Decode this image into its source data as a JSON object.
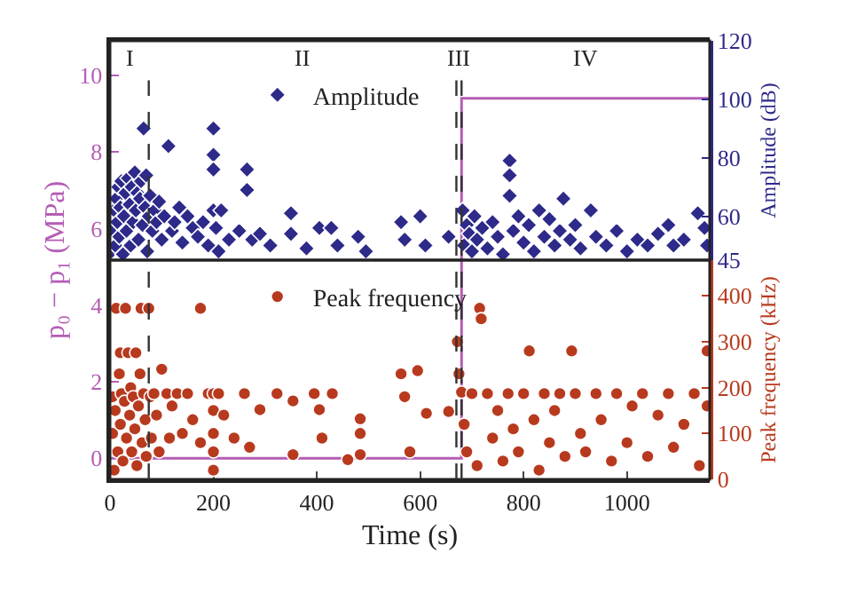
{
  "chart_data": {
    "type": "scatter",
    "xlabel": "Time (s)",
    "ylabel": "p₀ − p₁ (MPa)",
    "y2label": "Amplitude (dB)",
    "y3label": "Peak frequency (kHz)",
    "xlim": [
      0,
      1160
    ],
    "xticks": [
      0,
      200,
      400,
      600,
      800,
      1000
    ],
    "ylim": [
      -0.55,
      10.9
    ],
    "yticks": [
      0,
      2,
      4,
      6,
      8,
      10
    ],
    "y2lim": [
      45,
      120
    ],
    "y2ticks": [
      45,
      60,
      80,
      100,
      120
    ],
    "y3lim": [
      0,
      478
    ],
    "y3ticks": [
      0,
      100,
      200,
      300,
      400
    ],
    "grid": false,
    "legend": "top",
    "series": [
      {
        "type": "line",
        "color": "#b55db5",
        "marker": "none",
        "line_style": "solid",
        "x": [
          0,
          680,
          680,
          1160
        ],
        "values": [
          0,
          0,
          9.4,
          9.4
        ]
      },
      {
        "name": "Amplitude",
        "axis": "y2",
        "color": "#2e2a8a",
        "marker": "diamond",
        "x": [
          3,
          5,
          8,
          10,
          12,
          14,
          16,
          18,
          20,
          22,
          25,
          27,
          30,
          32,
          35,
          38,
          40,
          42,
          45,
          48,
          50,
          53,
          55,
          58,
          60,
          63,
          65,
          68,
          70,
          72,
          75,
          78,
          82,
          86,
          90,
          95,
          100,
          105,
          113,
          120,
          125,
          134,
          140,
          150,
          160,
          170,
          180,
          190,
          200,
          200,
          200,
          200,
          205,
          210,
          215,
          230,
          250,
          265,
          265,
          275,
          290,
          310,
          350,
          350,
          380,
          405,
          428,
          440,
          480,
          495,
          563,
          570,
          600,
          610,
          655,
          682,
          685,
          690,
          695,
          700,
          705,
          710,
          720,
          730,
          740,
          750,
          760,
          773,
          773,
          773,
          780,
          790,
          800,
          810,
          820,
          830,
          840,
          850,
          860,
          870,
          877,
          890,
          900,
          910,
          930,
          940,
          960,
          980,
          1000,
          1020,
          1040,
          1060,
          1080,
          1090,
          1110,
          1137,
          1150,
          1155
        ],
        "values": [
          48,
          55,
          62,
          50,
          66,
          58,
          70,
          53,
          63,
          72,
          47,
          60,
          68,
          55,
          73,
          64,
          50,
          70,
          58,
          75,
          62,
          68,
          52,
          66,
          72,
          57,
          90,
          63,
          74,
          48,
          60,
          67,
          55,
          62,
          58,
          65,
          52,
          60,
          84,
          55,
          58,
          63,
          51,
          60,
          56,
          53,
          58,
          50,
          90,
          81,
          76,
          62,
          56,
          48,
          62,
          52,
          55,
          76,
          69,
          52,
          54,
          50,
          61,
          54,
          49,
          56,
          56,
          50,
          53,
          48,
          58,
          52,
          60,
          50,
          53,
          62,
          50,
          57,
          54,
          48,
          60,
          52,
          56,
          49,
          58,
          53,
          47,
          79,
          74,
          67,
          55,
          60,
          51,
          57,
          48,
          62,
          53,
          59,
          50,
          55,
          66,
          52,
          57,
          49,
          62,
          53,
          50,
          55,
          48,
          52,
          50,
          54,
          57,
          50,
          52,
          61,
          56,
          50
        ]
      },
      {
        "name": "Peak frequency",
        "axis": "y3",
        "color": "#b83a1e",
        "marker": "circle",
        "x": [
          5,
          5,
          8,
          10,
          12,
          15,
          18,
          20,
          20,
          22,
          25,
          28,
          30,
          32,
          35,
          38,
          40,
          42,
          45,
          48,
          50,
          52,
          55,
          58,
          60,
          62,
          65,
          68,
          70,
          75,
          78,
          80,
          85,
          90,
          95,
          100,
          110,
          115,
          120,
          130,
          140,
          150,
          160,
          175,
          175,
          190,
          200,
          200,
          200,
          200,
          200,
          210,
          220,
          240,
          260,
          270,
          290,
          323,
          354,
          354,
          395,
          405,
          410,
          430,
          460,
          484,
          484,
          484,
          563,
          570,
          580,
          595,
          612,
          655,
          672,
          675,
          680,
          685,
          690,
          700,
          710,
          715,
          718,
          730,
          740,
          750,
          760,
          770,
          780,
          790,
          800,
          811,
          820,
          830,
          840,
          850,
          860,
          870,
          880,
          893,
          900,
          910,
          920,
          940,
          950,
          970,
          980,
          1000,
          1010,
          1030,
          1040,
          1060,
          1080,
          1090,
          1110,
          1130,
          1140,
          1155,
          1155
        ],
        "values": [
          180,
          100,
          20,
          150,
          373,
          60,
          230,
          276,
          120,
          187,
          40,
          170,
          373,
          90,
          276,
          140,
          200,
          60,
          180,
          110,
          276,
          30,
          160,
          230,
          373,
          80,
          187,
          130,
          50,
          373,
          180,
          90,
          187,
          140,
          60,
          240,
          187,
          90,
          160,
          187,
          100,
          187,
          130,
          373,
          80,
          187,
          187,
          150,
          100,
          60,
          20,
          187,
          140,
          90,
          187,
          70,
          152,
          187,
          171,
          54,
          187,
          152,
          90,
          187,
          43,
          132,
          100,
          54,
          230,
          180,
          60,
          237,
          144,
          148,
          300,
          230,
          190,
          120,
          60,
          187,
          30,
          373,
          350,
          187,
          90,
          150,
          40,
          187,
          110,
          60,
          187,
          280,
          130,
          20,
          187,
          80,
          150,
          187,
          50,
          280,
          187,
          100,
          60,
          187,
          130,
          40,
          187,
          80,
          160,
          187,
          50,
          140,
          187,
          70,
          120,
          187,
          30,
          280,
          160
        ]
      }
    ],
    "ref_lines": [
      {
        "axis": "x",
        "value": 75,
        "color": "#333333",
        "line_style": "dashed"
      },
      {
        "axis": "x",
        "value": 670,
        "color": "#333333",
        "line_style": "dashed"
      },
      {
        "axis": "x",
        "value": 680,
        "color": "#333333",
        "line_style": "dashed"
      }
    ],
    "annotations": [
      "I",
      "II",
      "III",
      "IV"
    ]
  }
}
